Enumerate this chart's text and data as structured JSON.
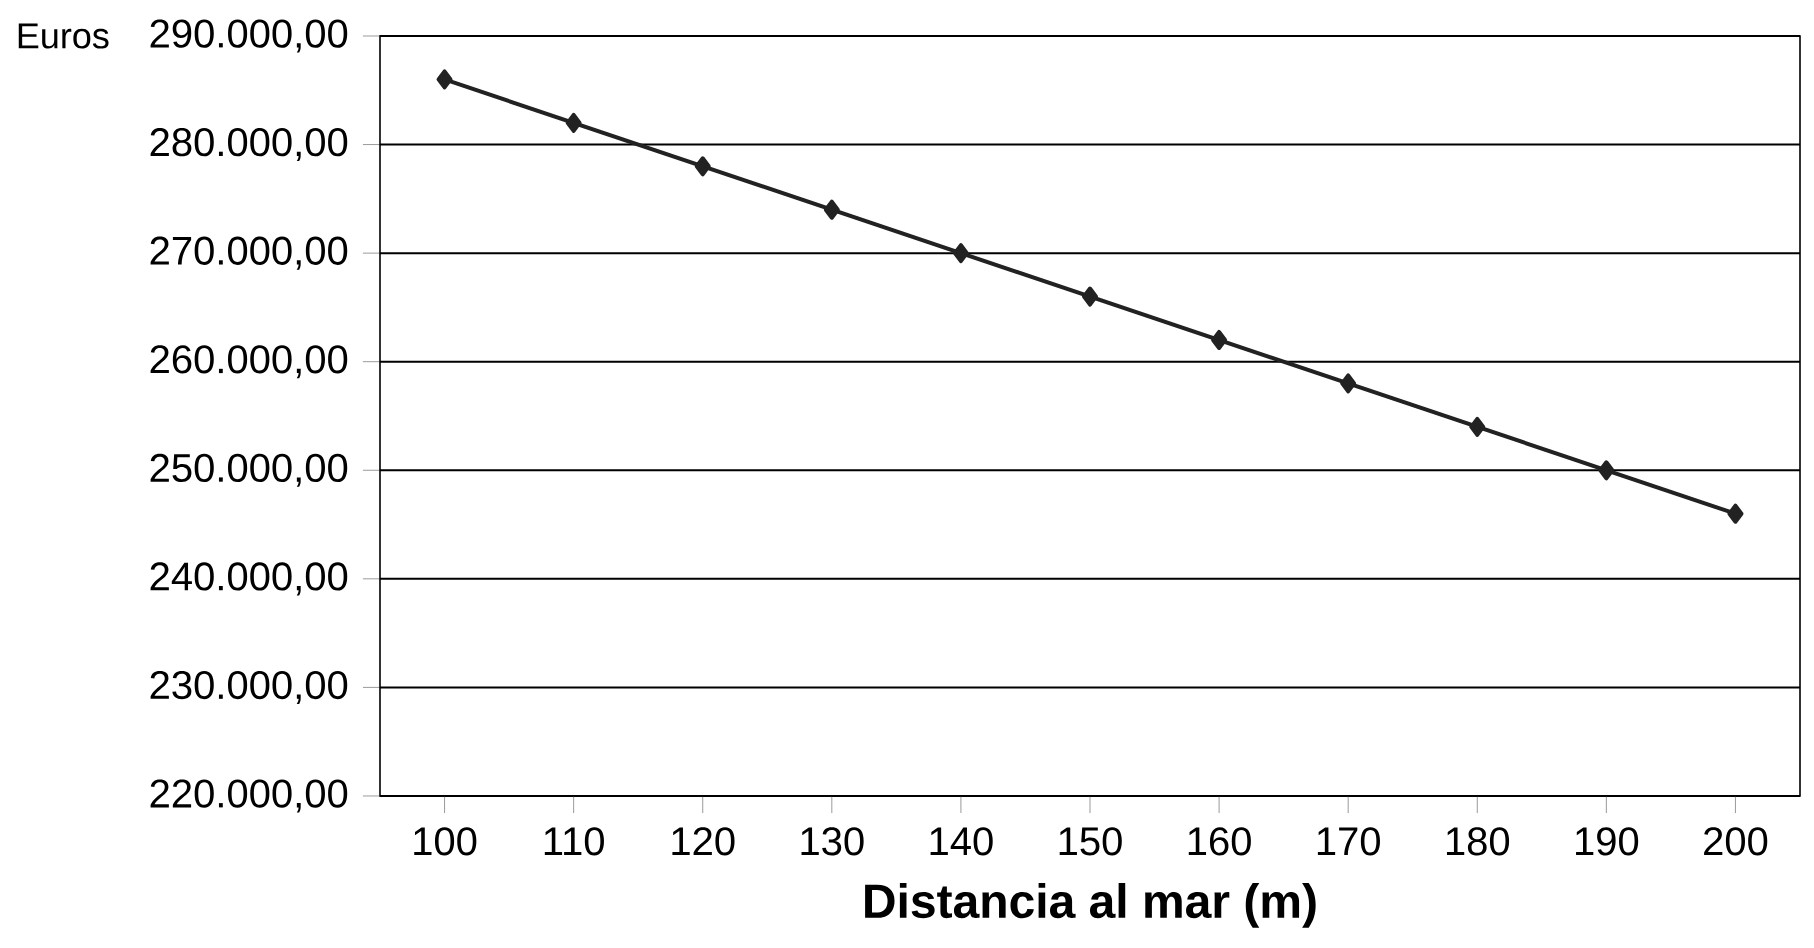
{
  "chart_data": {
    "type": "line",
    "ylabel": "Euros",
    "xlabel": "Distancia al mar (m)",
    "categories": [
      "100",
      "110",
      "120",
      "130",
      "140",
      "150",
      "160",
      "170",
      "180",
      "190",
      "200"
    ],
    "series": [
      {
        "color": "#222222",
        "values": [
          286000,
          282000,
          278000,
          274000,
          270000,
          266000,
          262000,
          258000,
          254000,
          250000,
          246000
        ]
      }
    ],
    "ylim": [
      220000,
      290000
    ],
    "yticks": [
      {
        "value": 220000,
        "label": "220.000,00"
      },
      {
        "value": 230000,
        "label": "230.000,00"
      },
      {
        "value": 240000,
        "label": "240.000,00"
      },
      {
        "value": 250000,
        "label": "250.000,00"
      },
      {
        "value": 260000,
        "label": "260.000,00"
      },
      {
        "value": 270000,
        "label": "270.000,00"
      },
      {
        "value": 280000,
        "label": "280.000,00"
      },
      {
        "value": 290000,
        "label": "290.000,00"
      }
    ],
    "grid": "y",
    "marker": "diamond"
  }
}
